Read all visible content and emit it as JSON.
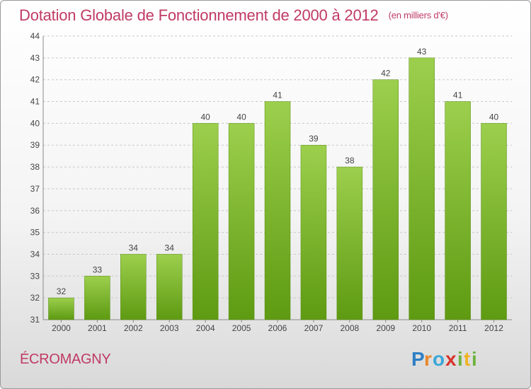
{
  "header": {
    "title": "Dotation Globale de Fonctionnement de 2000 à 2012",
    "unit": "(en milliers d'€)"
  },
  "footer": {
    "commune": "ÉCROMAGNY",
    "logo_text": "Proxiti"
  },
  "colors": {
    "title": "#c03a64",
    "bar_top": "#9ccf4d",
    "bar_bottom": "#5e9a12",
    "grid": "#c8c8c8"
  },
  "chart_data": {
    "type": "bar",
    "title": "Dotation Globale de Fonctionnement de 2000 à 2012",
    "subtitle": "(en milliers d'€)",
    "categories": [
      "2000",
      "2001",
      "2002",
      "2003",
      "2004",
      "2005",
      "2006",
      "2007",
      "2008",
      "2009",
      "2010",
      "2011",
      "2012"
    ],
    "values": [
      32,
      33,
      34,
      34,
      40,
      40,
      41,
      39,
      38,
      42,
      43,
      41,
      40
    ],
    "xlabel": "",
    "ylabel": "",
    "ylim": [
      31,
      44
    ],
    "yticks": [
      31,
      32,
      33,
      34,
      35,
      36,
      37,
      38,
      39,
      40,
      41,
      42,
      43,
      44
    ],
    "grid": true,
    "data_labels": true
  }
}
